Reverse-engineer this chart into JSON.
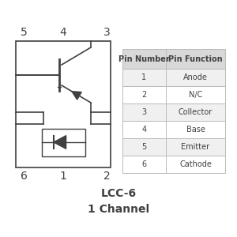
{
  "bg_color": "#ffffff",
  "line_color": "#404040",
  "table_header_bg": "#d8d8d8",
  "table_row_bg_odd": "#f0f0f0",
  "table_row_bg_even": "#ffffff",
  "table_border_color": "#bbbbbb",
  "table_data": [
    [
      "1",
      "Anode"
    ],
    [
      "2",
      "N/C"
    ],
    [
      "3",
      "Collector"
    ],
    [
      "4",
      "Base"
    ],
    [
      "5",
      "Emitter"
    ],
    [
      "6",
      "Cathode"
    ]
  ],
  "table_header": [
    "Pin Number",
    "Pin Function"
  ],
  "title_line1": "LCC-6",
  "title_line2": "1 Channel",
  "title_fontsize": 10,
  "pin_fontsize": 10,
  "table_fontsize": 7.0,
  "figsize": [
    3.0,
    3.0
  ],
  "dpi": 100
}
